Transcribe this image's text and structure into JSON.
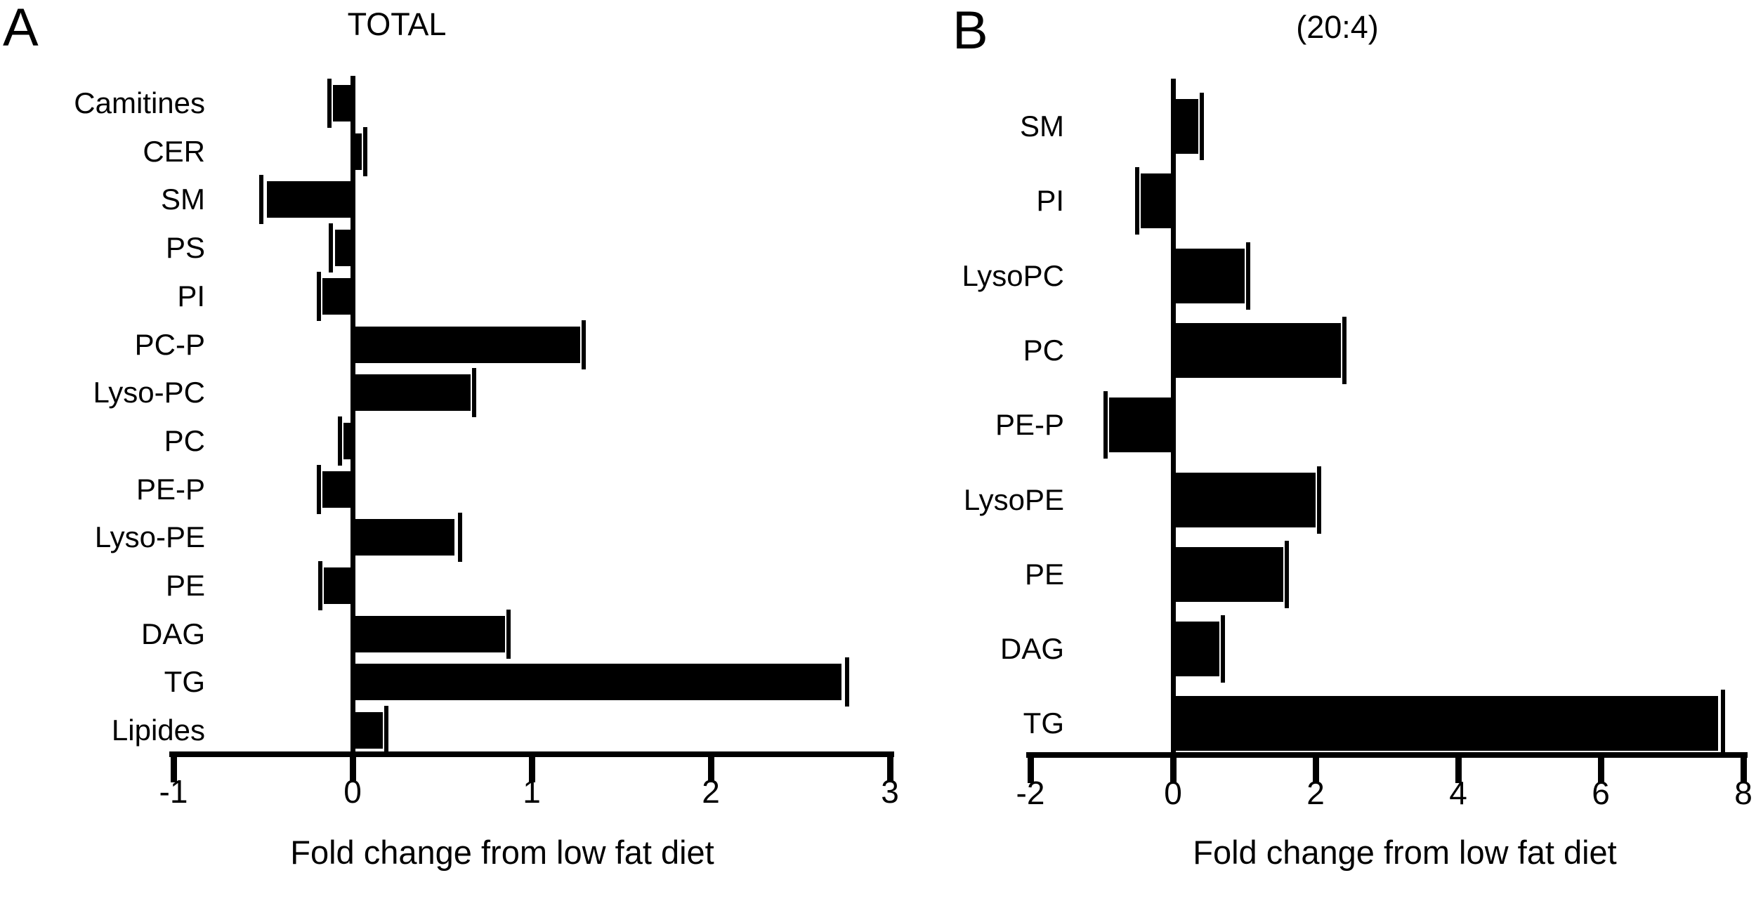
{
  "figure": {
    "background": "#ffffff",
    "ink_color": "#000000",
    "panel_a_letter": "A",
    "panel_b_letter": "B"
  },
  "chart_data": [
    {
      "panel": "A",
      "type": "bar",
      "orientation": "horizontal",
      "title": "TOTAL",
      "xlabel": "Fold change from low fat diet",
      "xlim": [
        -1,
        3
      ],
      "xticks": [
        -1,
        0,
        1,
        2,
        3
      ],
      "grid": false,
      "legend": null,
      "bar_color": "#000000",
      "categories": [
        "Camitines",
        "CER",
        "SM",
        "PS",
        "PI",
        "PC-P",
        "Lyso-PC",
        "PC",
        "PE-P",
        "Lyso-PE",
        "PE",
        "DAG",
        "TG",
        "Lipides"
      ],
      "values": [
        -0.11,
        0.05,
        -0.48,
        -0.1,
        -0.17,
        1.27,
        0.66,
        -0.05,
        -0.17,
        0.57,
        -0.16,
        0.85,
        2.73,
        0.17
      ],
      "errors": [
        0.02,
        0.02,
        0.03,
        0.02,
        0.02,
        0.02,
        0.02,
        0.02,
        0.02,
        0.03,
        0.02,
        0.02,
        0.03,
        0.02
      ]
    },
    {
      "panel": "B",
      "type": "bar",
      "orientation": "horizontal",
      "title": "(20:4)",
      "xlabel": "Fold change from low fat diet",
      "xlim": [
        -2,
        8
      ],
      "xticks": [
        -2,
        0,
        2,
        4,
        6,
        8
      ],
      "grid": false,
      "legend": null,
      "bar_color": "#000000",
      "categories": [
        "SM",
        "PI",
        "LysoPC",
        "PC",
        "PE-P",
        "LysoPE",
        "PE",
        "DAG",
        "TG"
      ],
      "values": [
        0.35,
        -0.45,
        1.0,
        2.35,
        -0.9,
        2.0,
        1.55,
        0.65,
        7.65
      ],
      "errors": [
        0.05,
        0.05,
        0.05,
        0.05,
        0.05,
        0.05,
        0.05,
        0.05,
        0.06
      ]
    }
  ]
}
